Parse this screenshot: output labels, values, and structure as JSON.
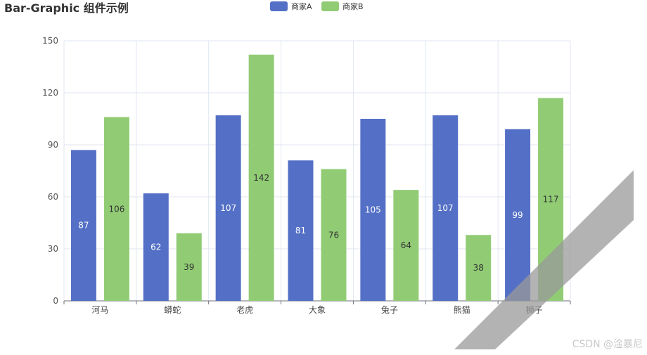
{
  "chart_data": {
    "type": "bar",
    "title": "Bar-Graphic 组件示例",
    "categories": [
      "河马",
      "蟒蛇",
      "老虎",
      "大象",
      "兔子",
      "熊猫",
      "狮子"
    ],
    "series": [
      {
        "name": "商家A",
        "values": [
          87,
          62,
          107,
          81,
          105,
          107,
          99
        ],
        "color": "#5470c6"
      },
      {
        "name": "商家B",
        "values": [
          106,
          39,
          142,
          76,
          64,
          38,
          117
        ],
        "color": "#91cc75"
      }
    ],
    "yticks": [
      0,
      30,
      60,
      90,
      120,
      150
    ],
    "ylim": [
      0,
      150
    ],
    "grid": true,
    "legend_position": "top-center"
  },
  "overlay": {
    "stripe_color": "#999999",
    "stripe_opacity": 0.75
  },
  "watermark": "CSDN @淦暴尼"
}
